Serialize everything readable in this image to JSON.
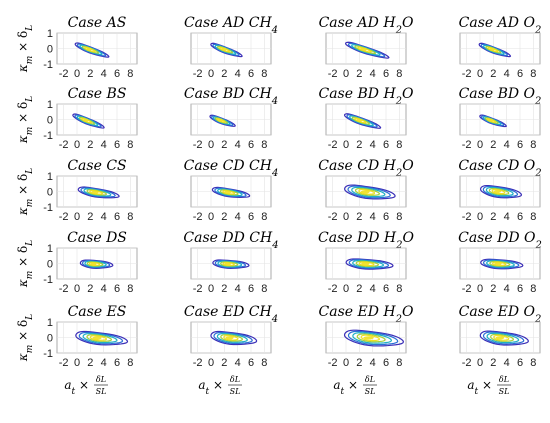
{
  "chart_data": {
    "type": "contour",
    "layout": "5x4 grid of joint PDF contour panels",
    "x_range": [
      -3,
      9
    ],
    "y_range": [
      -1,
      1
    ],
    "x_ticks": [
      -2,
      0,
      2,
      4,
      6,
      8
    ],
    "y_ticks": [
      -1,
      0,
      1
    ],
    "ylabel": "κm × δL",
    "xlabel": "at × δL/SL",
    "panels": [
      {
        "title": "Case AS",
        "cx": 1.8,
        "cy": -0.05,
        "slope": -0.16,
        "spread": 2.8,
        "width": 0.22
      },
      {
        "title": "Case AD CH4",
        "cx": 1.9,
        "cy": -0.05,
        "slope": -0.16,
        "spread": 2.6,
        "width": 0.22
      },
      {
        "title": "Case AD H2O",
        "cx": 2.6,
        "cy": -0.05,
        "slope": -0.14,
        "spread": 3.6,
        "width": 0.24
      },
      {
        "title": "Case AD O2",
        "cx": 1.8,
        "cy": -0.05,
        "slope": -0.16,
        "spread": 2.6,
        "width": 0.22
      },
      {
        "title": "Case BS",
        "cx": 1.3,
        "cy": -0.05,
        "slope": -0.17,
        "spread": 2.6,
        "width": 0.22
      },
      {
        "title": "Case BD CH4",
        "cx": 1.4,
        "cy": -0.05,
        "slope": -0.16,
        "spread": 2.1,
        "width": 0.2
      },
      {
        "title": "Case BD H2O",
        "cx": 2.0,
        "cy": -0.05,
        "slope": -0.15,
        "spread": 3.0,
        "width": 0.24
      },
      {
        "title": "Case BD O2",
        "cx": 1.6,
        "cy": -0.05,
        "slope": -0.16,
        "spread": 2.2,
        "width": 0.2
      },
      {
        "title": "Case CS",
        "cx": 2.7,
        "cy": -0.05,
        "slope": -0.07,
        "spread": 3.4,
        "width": 0.3
      },
      {
        "title": "Case CD CH4",
        "cx": 2.5,
        "cy": -0.05,
        "slope": -0.07,
        "spread": 3.1,
        "width": 0.28
      },
      {
        "title": "Case CD H2O",
        "cx": 2.9,
        "cy": -0.02,
        "slope": -0.06,
        "spread": 4.2,
        "width": 0.42
      },
      {
        "title": "Case CD O2",
        "cx": 2.6,
        "cy": 0.0,
        "slope": -0.06,
        "spread": 3.4,
        "width": 0.38
      },
      {
        "title": "Case DS",
        "cx": 2.5,
        "cy": -0.03,
        "slope": -0.03,
        "spread": 2.7,
        "width": 0.28
      },
      {
        "title": "Case DD CH4",
        "cx": 2.5,
        "cy": -0.03,
        "slope": -0.03,
        "spread": 3.0,
        "width": 0.28
      },
      {
        "title": "Case DD H2O",
        "cx": 2.9,
        "cy": -0.02,
        "slope": -0.03,
        "spread": 3.9,
        "width": 0.34
      },
      {
        "title": "Case DD O2",
        "cx": 2.7,
        "cy": -0.02,
        "slope": -0.03,
        "spread": 3.5,
        "width": 0.32
      },
      {
        "title": "Case ES",
        "cx": 3.0,
        "cy": -0.03,
        "slope": -0.05,
        "spread": 4.3,
        "width": 0.42
      },
      {
        "title": "Case ED CH4",
        "cx": 2.8,
        "cy": -0.02,
        "slope": -0.05,
        "spread": 3.8,
        "width": 0.42
      },
      {
        "title": "Case ED H2O",
        "cx": 3.4,
        "cy": -0.02,
        "slope": -0.05,
        "spread": 4.9,
        "width": 0.5
      },
      {
        "title": "Case ED O2",
        "cx": 3.0,
        "cy": -0.02,
        "slope": -0.05,
        "spread": 4.0,
        "width": 0.45
      }
    ],
    "levels": [
      0.12,
      0.3,
      0.5,
      0.7,
      0.88
    ],
    "level_colors": [
      "#3b2fb8",
      "#2a6fd6",
      "#1fb0c4",
      "#a8d03c",
      "#f0e020"
    ],
    "grid": true
  }
}
